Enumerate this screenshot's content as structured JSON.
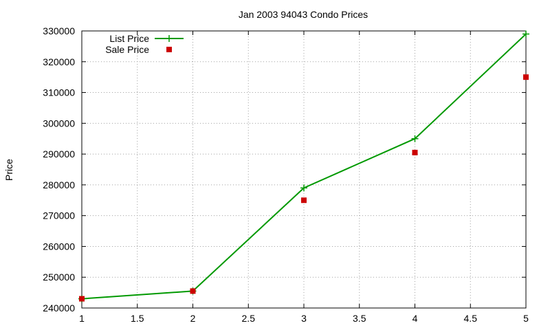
{
  "chart_data": {
    "type": "line",
    "title": "Jan 2003 94043 Condo Prices",
    "xlabel": "",
    "ylabel": "Price",
    "xlim": [
      1,
      5
    ],
    "ylim": [
      240000,
      330000
    ],
    "x_ticks": [
      "1",
      "1.5",
      "2",
      "2.5",
      "3",
      "3.5",
      "4",
      "4.5",
      "5"
    ],
    "y_ticks": [
      "240000",
      "250000",
      "260000",
      "270000",
      "280000",
      "290000",
      "300000",
      "310000",
      "320000",
      "330000"
    ],
    "grid": true,
    "legend_position": "top-left",
    "series": [
      {
        "name": "List Price",
        "style": "linespoints",
        "marker": "plus",
        "color": "#009900",
        "x": [
          1,
          2,
          3,
          4,
          5
        ],
        "y": [
          243000,
          245500,
          279000,
          295000,
          329000
        ]
      },
      {
        "name": "Sale Price",
        "style": "points",
        "marker": "square",
        "color": "#cc0000",
        "x": [
          1,
          2,
          3,
          4,
          5
        ],
        "y": [
          243000,
          245500,
          275000,
          290500,
          315000
        ]
      }
    ]
  }
}
